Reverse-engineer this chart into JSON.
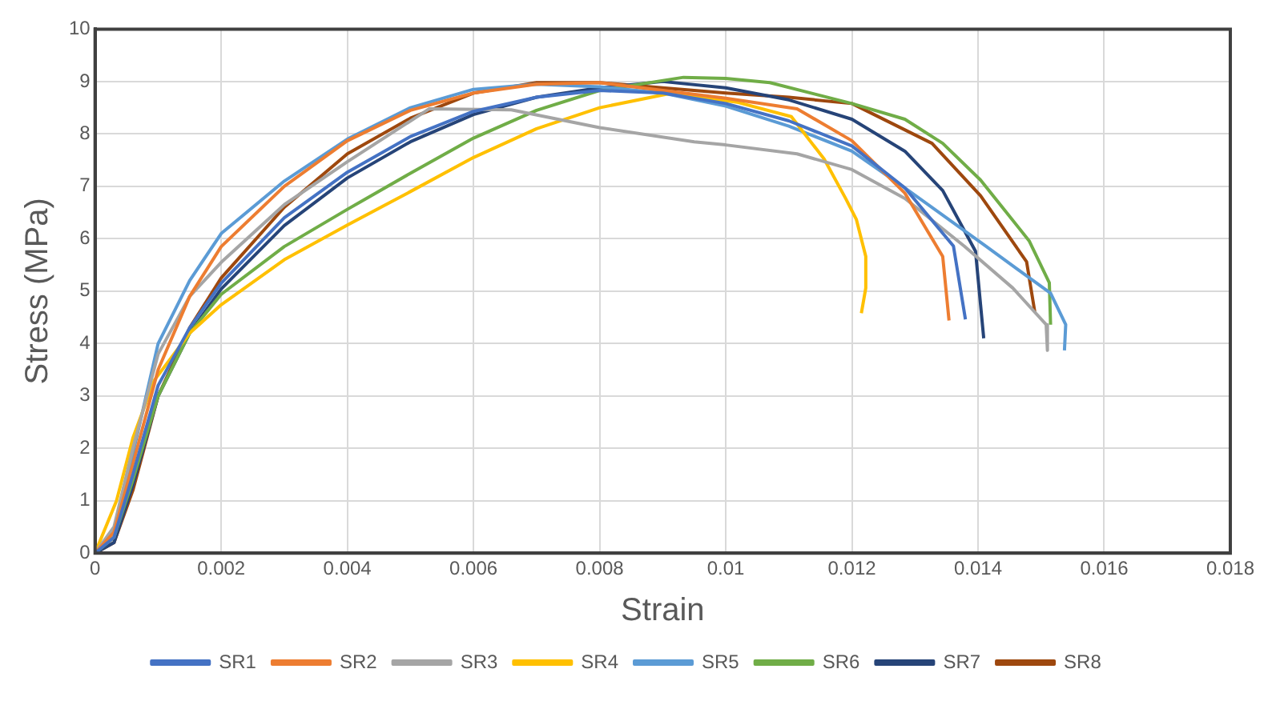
{
  "chart_data": {
    "type": "line",
    "xlabel": "Strain",
    "ylabel": "Stress (MPa)",
    "xlim": [
      0,
      0.018
    ],
    "ylim": [
      0,
      10
    ],
    "xticks": [
      0,
      0.002,
      0.004,
      0.006,
      0.008,
      0.01,
      0.012,
      0.014,
      0.016,
      0.018
    ],
    "yticks": [
      0,
      1,
      2,
      3,
      4,
      5,
      6,
      7,
      8,
      9,
      10
    ],
    "grid": true,
    "legend": "bottom",
    "marker": "none",
    "line_style": "solid",
    "series": [
      {
        "name": "SR1",
        "color": "#4472c4",
        "x": [
          0,
          0.0003,
          0.0006,
          0.001,
          0.0015,
          0.002,
          0.003,
          0.004,
          0.005,
          0.006,
          0.007,
          0.008,
          0.009,
          0.01,
          0.011,
          0.012,
          0.01284,
          0.01361,
          0.0138
        ],
        "values": [
          0,
          0.3,
          1.5,
          3.2,
          4.3,
          5.15,
          6.4,
          7.27,
          7.95,
          8.43,
          8.7,
          8.83,
          8.78,
          8.58,
          8.25,
          7.77,
          6.97,
          5.86,
          4.46
        ]
      },
      {
        "name": "SR2",
        "color": "#ed7d31",
        "x": [
          0,
          0.0003,
          0.0006,
          0.001,
          0.0015,
          0.002,
          0.003,
          0.004,
          0.005,
          0.006,
          0.007,
          0.008,
          0.009,
          0.01,
          0.01113,
          0.012,
          0.01284,
          0.01344,
          0.01354
        ],
        "values": [
          0,
          0.4,
          1.7,
          3.5,
          4.9,
          5.85,
          7.0,
          7.87,
          8.45,
          8.78,
          8.95,
          8.98,
          8.83,
          8.68,
          8.48,
          7.87,
          6.87,
          5.66,
          4.44
        ]
      },
      {
        "name": "SR3",
        "color": "#a5a5a5",
        "x": [
          0,
          0.0003,
          0.0006,
          0.001,
          0.0015,
          0.002,
          0.003,
          0.004,
          0.0053,
          0.0066,
          0.008,
          0.0095,
          0.01,
          0.01113,
          0.012,
          0.01284,
          0.01378,
          0.01455,
          0.01508,
          0.0151
        ],
        "values": [
          0,
          0.5,
          2.0,
          3.8,
          4.9,
          5.55,
          6.65,
          7.47,
          8.48,
          8.46,
          8.12,
          7.85,
          7.79,
          7.62,
          7.32,
          6.77,
          5.86,
          5.06,
          4.36,
          3.87
        ]
      },
      {
        "name": "SR4",
        "color": "#ffc000",
        "x": [
          0,
          0.00034,
          0.0006,
          0.00094,
          0.0015,
          0.002,
          0.003,
          0.004,
          0.005,
          0.006,
          0.007,
          0.008,
          0.00915,
          0.0102,
          0.01104,
          0.01156,
          0.0119,
          0.01207,
          0.01222,
          0.01222,
          0.01215
        ],
        "values": [
          0,
          1.0,
          2.2,
          3.3,
          4.2,
          4.74,
          5.6,
          6.26,
          6.9,
          7.55,
          8.1,
          8.5,
          8.78,
          8.6,
          8.33,
          7.52,
          6.77,
          6.37,
          5.66,
          5.06,
          4.58
        ]
      },
      {
        "name": "SR5",
        "color": "#5b9bd5",
        "x": [
          0,
          0.0003,
          0.0006,
          0.001,
          0.0015,
          0.002,
          0.003,
          0.004,
          0.005,
          0.006,
          0.007,
          0.008,
          0.009,
          0.01,
          0.011,
          0.012,
          0.01284,
          0.01412,
          0.01515,
          0.01539,
          0.01537
        ],
        "values": [
          0,
          0.4,
          1.9,
          4.0,
          5.2,
          6.1,
          7.1,
          7.9,
          8.5,
          8.85,
          8.95,
          8.9,
          8.78,
          8.53,
          8.15,
          7.67,
          6.97,
          5.86,
          4.96,
          4.36,
          3.87
        ]
      },
      {
        "name": "SR6",
        "color": "#70ad47",
        "x": [
          0,
          0.0003,
          0.0006,
          0.001,
          0.0015,
          0.002,
          0.003,
          0.004,
          0.005,
          0.006,
          0.007,
          0.008,
          0.00933,
          0.01,
          0.0107,
          0.012,
          0.01284,
          0.01344,
          0.01404,
          0.01481,
          0.01513,
          0.01515
        ],
        "values": [
          0,
          0.3,
          1.4,
          3.0,
          4.2,
          4.94,
          5.85,
          6.56,
          7.25,
          7.92,
          8.45,
          8.83,
          9.08,
          9.06,
          8.98,
          8.58,
          8.28,
          7.82,
          7.12,
          5.96,
          5.16,
          4.36
        ]
      },
      {
        "name": "SR7",
        "color": "#264478",
        "x": [
          0,
          0.0003,
          0.0006,
          0.001,
          0.0015,
          0.002,
          0.003,
          0.004,
          0.005,
          0.006,
          0.007,
          0.008,
          0.009,
          0.01,
          0.011,
          0.012,
          0.01284,
          0.01344,
          0.01396,
          0.01409
        ],
        "values": [
          0,
          0.2,
          1.3,
          3.0,
          4.2,
          5.04,
          6.25,
          7.16,
          7.85,
          8.37,
          8.7,
          8.88,
          9.0,
          8.88,
          8.65,
          8.28,
          7.67,
          6.92,
          5.76,
          4.1
        ]
      },
      {
        "name": "SR8",
        "color": "#9e480e",
        "x": [
          0,
          0.0003,
          0.0006,
          0.001,
          0.0015,
          0.002,
          0.003,
          0.004,
          0.005,
          0.006,
          0.007,
          0.008,
          0.009,
          0.01,
          0.011,
          0.012,
          0.01327,
          0.01404,
          0.01477,
          0.0149
        ],
        "values": [
          0,
          0.2,
          1.2,
          3.0,
          4.3,
          5.25,
          6.6,
          7.62,
          8.3,
          8.78,
          8.98,
          8.98,
          8.88,
          8.78,
          8.7,
          8.58,
          7.82,
          6.82,
          5.56,
          4.6
        ]
      }
    ]
  }
}
